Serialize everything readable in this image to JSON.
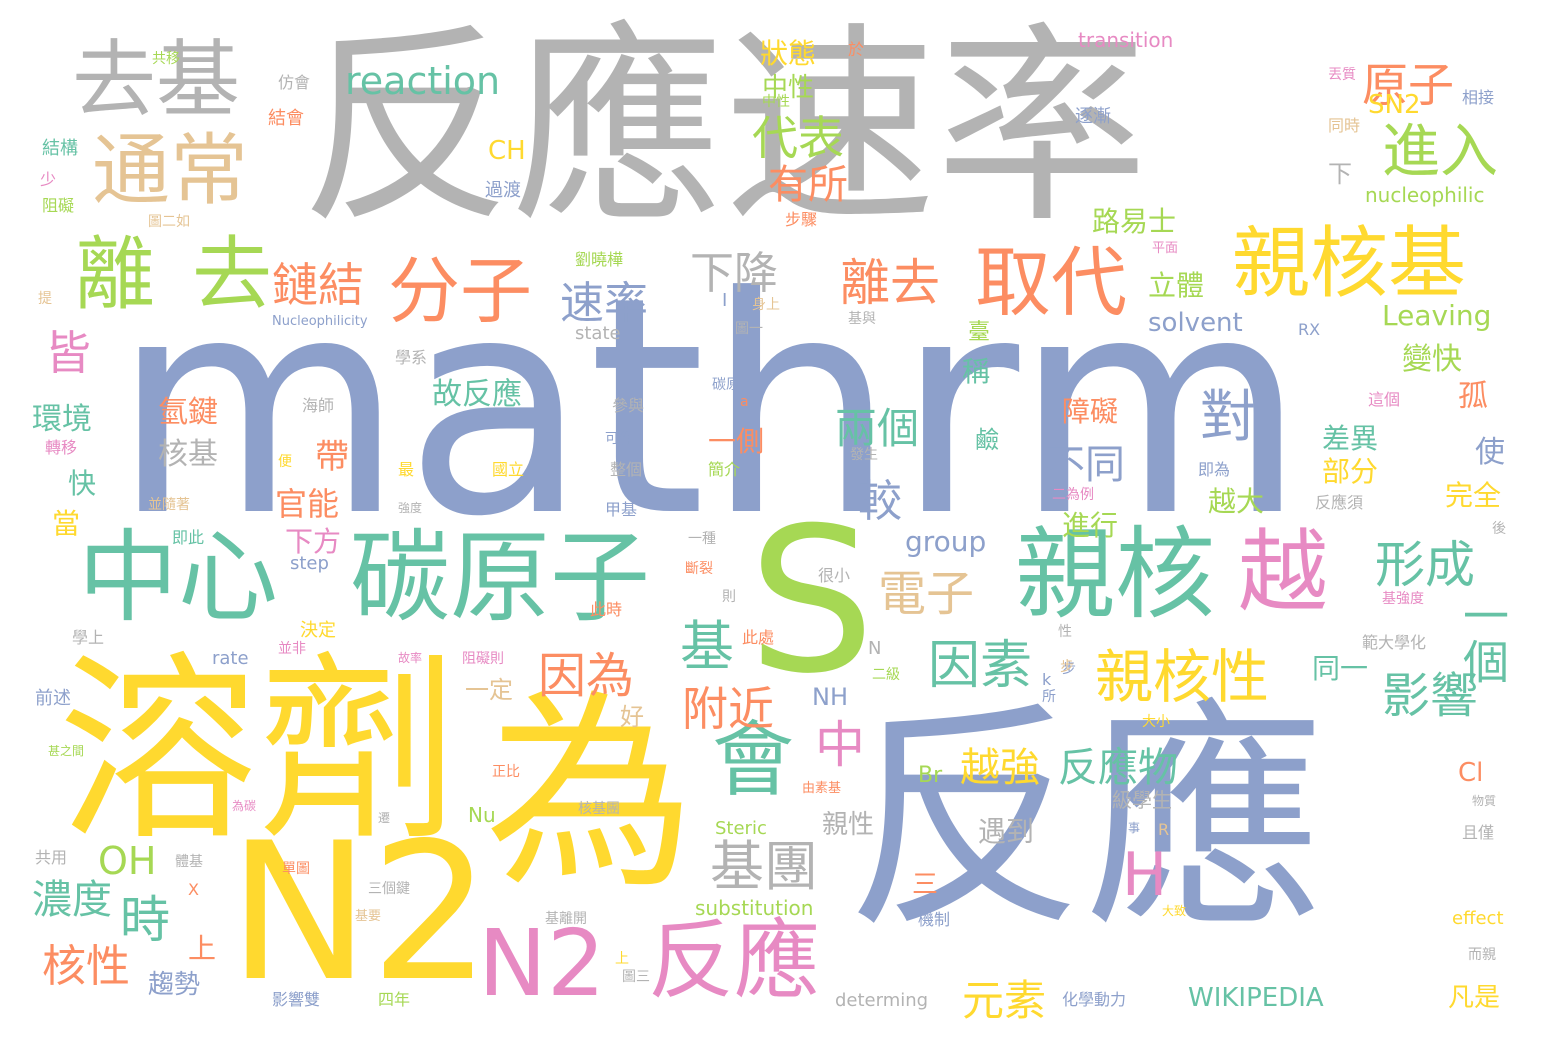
{
  "title": "",
  "words": [
    "mathrm",
    "反應",
    "反應速率",
    "S",
    "溶劑",
    "為",
    "N2",
    "中心",
    "碳原子",
    "親核",
    "越",
    "去基",
    "通常",
    "離",
    "去",
    "分子",
    "取代",
    "親核基",
    "會",
    "反應",
    "N2",
    "親核性",
    "基團",
    "reaction",
    "原子",
    "進入",
    "代表",
    "有所",
    "鏈結",
    "離去",
    "速率",
    "下降",
    "皆",
    "電子",
    "因為",
    "附近",
    "形成",
    "一個",
    "影響",
    "因素",
    "對",
    "不同",
    "兩個",
    "較",
    "基",
    "中",
    "H",
    "OH",
    "時",
    "濃度",
    "核性",
    "元素",
    "越強",
    "反應物",
    "WIKIPEDIA",
    "故反應",
    "環境",
    "氫鍵",
    "核基",
    "官能",
    "帶",
    "下方",
    "快",
    "當",
    "上",
    "趨勢",
    "一側",
    "group",
    "solvent",
    "Leaving",
    "變快",
    "孤",
    "使",
    "差異",
    "部分",
    "越大",
    "完全",
    "進行",
    "立體",
    "路易士",
    "SN2",
    "CH",
    "狀態",
    "中性",
    "nucleophilic",
    "下",
    "transition",
    "逐漸",
    "同時",
    "相接",
    "稱",
    "障礙",
    "鹼",
    "臺",
    "遇到",
    "親性",
    "三",
    "凡是",
    "Br",
    "Cl",
    "NH",
    "一定",
    "好",
    "同一",
    "substitution",
    "Steric",
    "Nu",
    "級學生",
    "轉移",
    "結構",
    "少",
    "阻礙",
    "過渡",
    "結會",
    "仿會",
    "共移",
    "於",
    "丟質",
    "step",
    "rate",
    "state",
    "Nucleophilicity",
    "學系",
    "海師",
    "參與",
    "可作",
    "整個",
    "簡介",
    "發生",
    "即為",
    "二為例",
    "反應須",
    "甲基",
    "並隨著",
    "即此",
    "強度",
    "一種",
    "斷裂",
    "此時",
    "決定",
    "並非",
    "此處",
    "很小",
    "則",
    "基強度",
    "範大學化",
    "二級",
    "步",
    "大小",
    "阻礙則",
    "故率",
    "正比",
    "核基團",
    "由素基",
    "事",
    "R",
    "物質",
    "且僅",
    "共用",
    "體基",
    "單圖",
    "三個鍵",
    "基要",
    "基離開",
    "機制",
    "大致",
    "effect",
    "而親",
    "影響雙",
    "四年",
    "determing",
    "化學動力",
    "圖三",
    "圖一",
    "身上",
    "基與",
    "劉曉樺",
    "平面",
    "步驟",
    "圖二如",
    "提",
    "RX",
    "這個",
    "最",
    "國立",
    "碳原子",
    "a",
    "後",
    "前述",
    "甚之間",
    "為碳",
    "N",
    "k",
    "X",
    "I",
    "便",
    "遷",
    "上",
    "學上",
    "性",
    "所",
    "步",
    "中性"
  ]
}
